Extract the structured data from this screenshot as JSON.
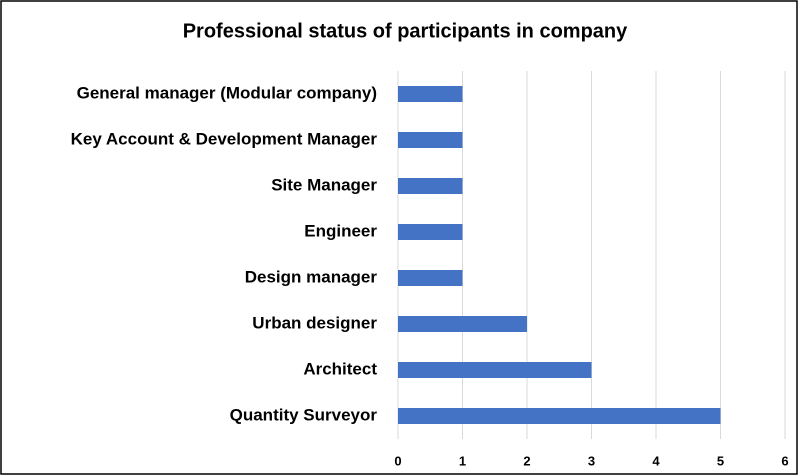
{
  "chart_data": {
    "type": "barh",
    "title": "Professional status of participants in company",
    "categories": [
      "General manager (Modular company)",
      "Key Account & Development Manager",
      "Site Manager",
      "Engineer",
      "Design manager",
      "Urban designer",
      "Architect",
      "Quantity Surveyor"
    ],
    "values": [
      1,
      1,
      1,
      1,
      1,
      2,
      3,
      5
    ],
    "color": "#4472c4",
    "xlim": [
      0,
      6
    ],
    "xticks": [
      0,
      1,
      2,
      3,
      4,
      5,
      6
    ],
    "grid": true
  }
}
